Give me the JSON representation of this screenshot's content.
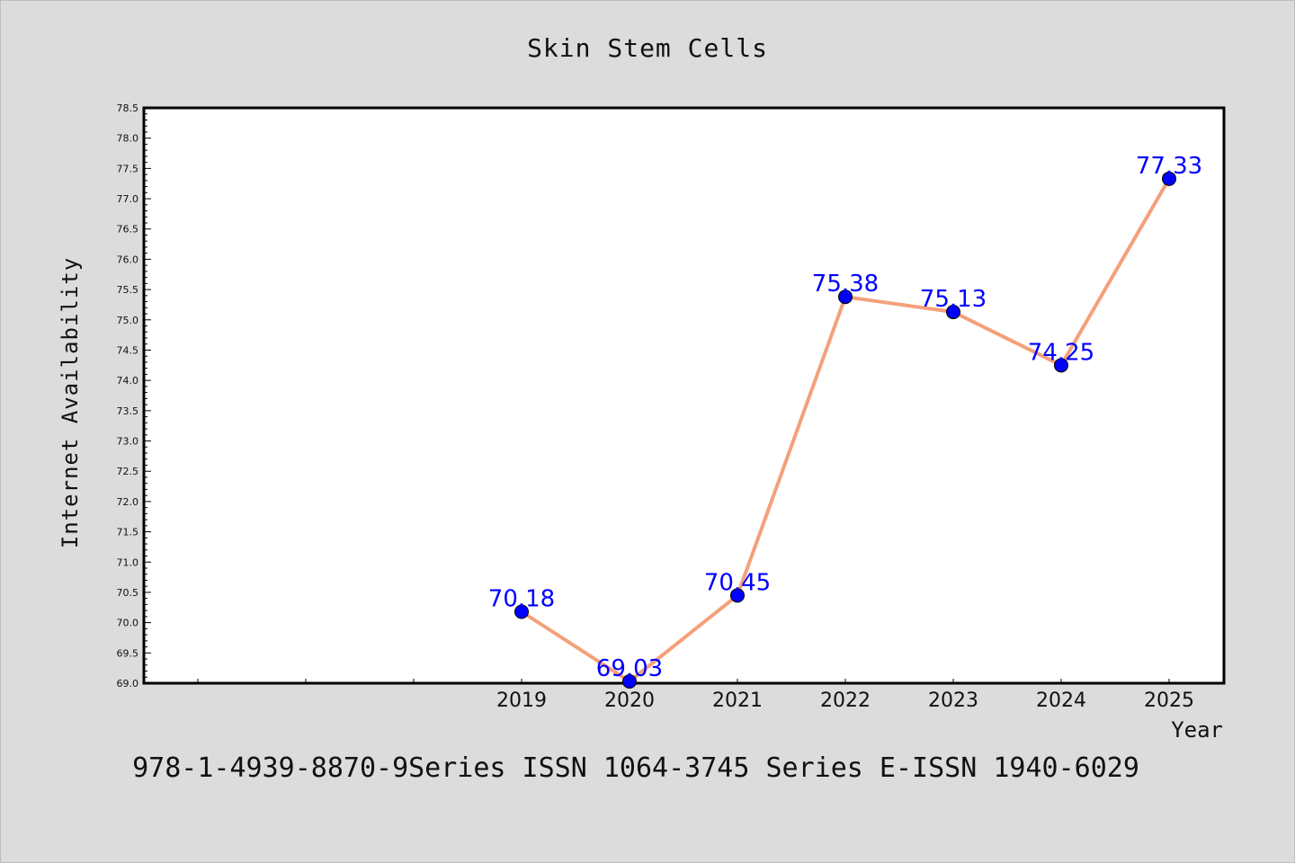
{
  "chart_data": {
    "type": "line",
    "title": "Skin Stem Cells",
    "xlabel": "Year",
    "ylabel": "Internet Availability",
    "categories": [
      "2019",
      "2020",
      "2021",
      "2022",
      "2023",
      "2024",
      "2025"
    ],
    "series": [
      {
        "values": [
          70.18,
          69.03,
          70.45,
          75.38,
          75.13,
          74.25,
          77.33
        ]
      }
    ],
    "data_labels": [
      "70.18",
      "69.03",
      "70.45",
      "75.38",
      "75.13",
      "74.25",
      "77.33"
    ],
    "ylim": [
      69.0,
      78.5
    ],
    "ytick_labels": [
      "69.0",
      "69.5",
      "70.0",
      "70.5",
      "71.0",
      "71.5",
      "72.0",
      "72.5",
      "73.0",
      "73.5",
      "74.0",
      "74.5",
      "75.0",
      "75.5",
      "76.0",
      "76.5",
      "77.0",
      "77.5",
      "78.0",
      "78.5"
    ],
    "grid": false,
    "line_color": "#f4a07a",
    "marker_color": "#0000ff",
    "label_color": "#0000ff"
  },
  "footer": {
    "text": "978-1-4939-8870-9Series ISSN 1064-3745 Series E-ISSN 1940-6029"
  }
}
